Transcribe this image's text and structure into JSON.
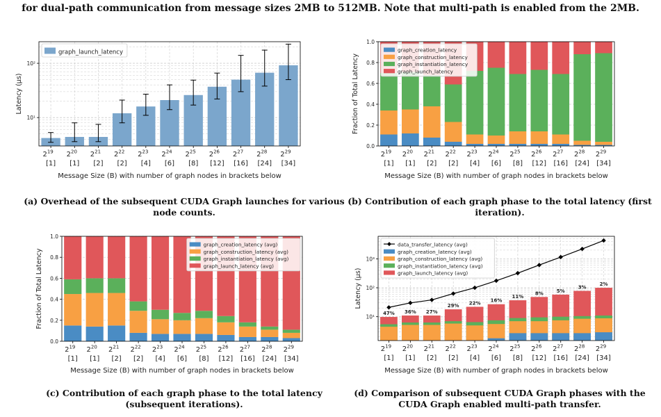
{
  "figure_caption": "for dual-path communication from message sizes 2MB to 512MB. Note that multi-path is enabled from the 2MB.",
  "colors": {
    "creation": "#4a8cc4",
    "construction": "#f8a043",
    "instantiation": "#5bb05b",
    "launch": "#e0575a",
    "launch_single": "#7ba6cc",
    "data_transfer": "#000000"
  },
  "chart_data": [
    {
      "id": "a",
      "type": "bar",
      "caption": "(a) Overhead of the subsequent CUDA Graph launches for various node counts.",
      "xlabel": "Message Size (B) with number of graph nodes in brackets below",
      "ylabel": "Latency (µs)",
      "yscale": "log",
      "ylim": [
        3,
        250
      ],
      "yticks": [
        10,
        100
      ],
      "ytick_labels": [
        "10¹",
        "10²"
      ],
      "grid": true,
      "legend_position": "upper-left",
      "categories": [
        "2",
        "2",
        "2",
        "2",
        "2",
        "2",
        "2",
        "2",
        "2",
        "2",
        "2"
      ],
      "category_exponents": [
        "19",
        "20",
        "21",
        "22",
        "23",
        "24",
        "25",
        "26",
        "27",
        "28",
        "29"
      ],
      "node_labels": [
        "[1]",
        "[1]",
        "[2]",
        "[2]",
        "[4]",
        "[6]",
        "[8]",
        "[12]",
        "[16]",
        "[24]",
        "[34]"
      ],
      "series": [
        {
          "name": "graph_launch_latency",
          "color_key": "launch_single",
          "values": [
            4.2,
            4.4,
            4.4,
            12,
            16,
            21,
            26,
            37,
            50,
            67,
            92
          ],
          "err_low": [
            3.5,
            3.6,
            3.6,
            8,
            11,
            14,
            17,
            22,
            30,
            38,
            50
          ],
          "err_high": [
            5.3,
            8,
            7.5,
            21,
            27,
            40,
            49,
            66,
            140,
            175,
            225
          ]
        }
      ]
    },
    {
      "id": "b",
      "type": "stacked-bar",
      "caption": "(b) Contribution of each graph phase to the total latency (first iteration).",
      "xlabel": "Message Size (B) with number of graph nodes in brackets below",
      "ylabel": "Fraction of Total Latency",
      "ylim": [
        0,
        1
      ],
      "yticks": [
        0,
        0.2,
        0.4,
        0.6,
        0.8,
        1.0
      ],
      "ytick_labels": [
        "0.0",
        "0.2",
        "0.4",
        "0.6",
        "0.8",
        "1.0"
      ],
      "grid": true,
      "legend_position": "upper-left",
      "categories": [
        "2",
        "2",
        "2",
        "2",
        "2",
        "2",
        "2",
        "2",
        "2",
        "2",
        "2"
      ],
      "category_exponents": [
        "19",
        "20",
        "21",
        "22",
        "23",
        "24",
        "25",
        "26",
        "27",
        "28",
        "29"
      ],
      "node_labels": [
        "[1]",
        "[1]",
        "[2]",
        "[2]",
        "[4]",
        "[6]",
        "[8]",
        "[12]",
        "[16]",
        "[24]",
        "[34]"
      ],
      "series": [
        {
          "name": "graph_creation_latency",
          "color_key": "creation",
          "values": [
            0.11,
            0.12,
            0.08,
            0.04,
            0.02,
            0.02,
            0.02,
            0.02,
            0.02,
            0.01,
            0.01
          ]
        },
        {
          "name": "graph_construction_latency",
          "color_key": "construction",
          "values": [
            0.23,
            0.23,
            0.3,
            0.19,
            0.09,
            0.08,
            0.12,
            0.12,
            0.09,
            0.04,
            0.03
          ]
        },
        {
          "name": "graph_instantiation_latency",
          "color_key": "instantiation",
          "values": [
            0.36,
            0.36,
            0.3,
            0.36,
            0.61,
            0.65,
            0.55,
            0.59,
            0.58,
            0.83,
            0.85
          ]
        },
        {
          "name": "graph_launch_latency",
          "color_key": "launch",
          "values": [
            0.3,
            0.29,
            0.32,
            0.41,
            0.28,
            0.25,
            0.31,
            0.27,
            0.31,
            0.12,
            0.11
          ]
        }
      ]
    },
    {
      "id": "c",
      "type": "stacked-bar",
      "caption": "(c) Contribution of each graph phase to the total latency (subsequent iterations).",
      "xlabel": "Message Size (B) with number of graph nodes in brackets below",
      "ylabel": "Fraction of Total Latency",
      "ylim": [
        0,
        1
      ],
      "yticks": [
        0,
        0.2,
        0.4,
        0.6,
        0.8,
        1.0
      ],
      "ytick_labels": [
        "0.0",
        "0.2",
        "0.4",
        "0.6",
        "0.8",
        "1.0"
      ],
      "grid": true,
      "legend_position": "upper-right",
      "categories": [
        "2",
        "2",
        "2",
        "2",
        "2",
        "2",
        "2",
        "2",
        "2",
        "2",
        "2"
      ],
      "category_exponents": [
        "19",
        "20",
        "21",
        "22",
        "23",
        "24",
        "25",
        "26",
        "27",
        "28",
        "29"
      ],
      "node_labels": [
        "[1]",
        "[1]",
        "[2]",
        "[2]",
        "[4]",
        "[6]",
        "[8]",
        "[12]",
        "[16]",
        "[24]",
        "[34]"
      ],
      "series": [
        {
          "name": "graph_creation_latency (avg)",
          "color_key": "creation",
          "values": [
            0.15,
            0.14,
            0.15,
            0.08,
            0.07,
            0.07,
            0.07,
            0.06,
            0.04,
            0.04,
            0.03
          ]
        },
        {
          "name": "graph_construction_latency (avg)",
          "color_key": "construction",
          "values": [
            0.3,
            0.32,
            0.31,
            0.21,
            0.14,
            0.13,
            0.15,
            0.12,
            0.1,
            0.07,
            0.05
          ]
        },
        {
          "name": "graph_instantiation_latency (avg)",
          "color_key": "instantiation",
          "values": [
            0.14,
            0.14,
            0.14,
            0.09,
            0.09,
            0.07,
            0.07,
            0.06,
            0.04,
            0.03,
            0.03
          ]
        },
        {
          "name": "graph_launch_latency (avg)",
          "color_key": "launch",
          "values": [
            0.41,
            0.4,
            0.4,
            0.62,
            0.7,
            0.73,
            0.71,
            0.76,
            0.82,
            0.86,
            0.89
          ]
        }
      ]
    },
    {
      "id": "d",
      "type": "stacked-bar-line",
      "caption": "(d) Comparison of subsequent CUDA Graph phases with the CUDA Graph enabled multi-path transfer.",
      "xlabel": "Message Size (B) with number of graph nodes in brackets below",
      "ylabel": "Latency (µs)",
      "yscale": "log",
      "ylim": [
        1.5,
        6000
      ],
      "yticks": [
        10,
        100,
        1000
      ],
      "ytick_labels": [
        "10¹",
        "10²",
        "10³"
      ],
      "grid": true,
      "legend_position": "upper-left",
      "categories": [
        "2",
        "2",
        "2",
        "2",
        "2",
        "2",
        "2",
        "2",
        "2",
        "2",
        "2"
      ],
      "category_exponents": [
        "19",
        "20",
        "21",
        "22",
        "23",
        "24",
        "25",
        "26",
        "27",
        "28",
        "29"
      ],
      "node_labels": [
        "[1]",
        "[1]",
        "[2]",
        "[2]",
        "[4]",
        "[6]",
        "[8]",
        "[12]",
        "[16]",
        "[24]",
        "[34]"
      ],
      "line": {
        "name": "data_transfer_latency (avg)",
        "color_key": "data_transfer",
        "values": [
          21,
          30,
          38,
          63,
          100,
          175,
          320,
          610,
          1150,
          2200,
          4300
        ]
      },
      "series": [
        {
          "name": "graph_creation_latency (avg)",
          "color_key": "creation",
          "values": [
            1.5,
            1.5,
            1.5,
            1.5,
            1.5,
            1.8,
            2.7,
            2.7,
            2.7,
            2.7,
            2.9
          ]
        },
        {
          "name": "graph_construction_latency (avg)",
          "color_key": "construction",
          "values": [
            4.5,
            5.2,
            5.2,
            5.8,
            5.0,
            5.6,
            7.0,
            7.0,
            7.5,
            8.5,
            8.8
          ]
        },
        {
          "name": "graph_instantiation_latency (avg)",
          "color_key": "instantiation",
          "values": [
            5.5,
            6.3,
            6.3,
            7.0,
            6.5,
            7.5,
            9.0,
            9.5,
            10,
            10.5,
            11
          ]
        },
        {
          "name": "graph_launch_latency (avg)",
          "color_key": "launch",
          "values": [
            9.8,
            11,
            11,
            18,
            22,
            27,
            37,
            48,
            58,
            78,
            100
          ]
        }
      ],
      "bar_labels": [
        "47%",
        "36%",
        "27%",
        "29%",
        "22%",
        "16%",
        "11%",
        "8%",
        "5%",
        "3%",
        "2%"
      ]
    }
  ]
}
